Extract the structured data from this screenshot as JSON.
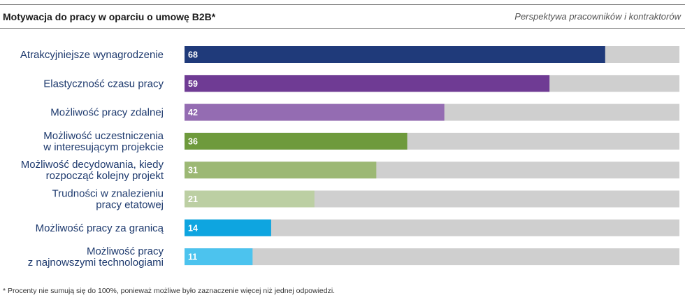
{
  "header": {
    "title": "Motywacja do pracy w oparciu o umowę B2B*",
    "subtitle": "Perspektywa pracowników i kontraktorów"
  },
  "footnote": "* Procenty nie sumują się do 100%, ponieważ możliwe było zaznaczenie więcej niż jednej odpowiedzi.",
  "chart_data": {
    "type": "bar",
    "orientation": "horizontal",
    "title": "Motywacja do pracy w oparciu o umowę B2B*",
    "subtitle": "Perspektywa pracowników i kontraktorów",
    "xlim": [
      0,
      80
    ],
    "grid": false,
    "legend": "none",
    "track_color": "#cfcfcf",
    "categories": [
      [
        "Atrakcyjniejsze wynagrodzenie"
      ],
      [
        "Elastyczność czasu pracy"
      ],
      [
        "Możliwość pracy zdalnej"
      ],
      [
        "Możliwość uczestniczenia",
        "w interesującym projekcie"
      ],
      [
        "Możliwość decydowania, kiedy",
        "rozpocząć kolejny projekt"
      ],
      [
        "Trudności w znalezieniu",
        "pracy etatowej"
      ],
      [
        "Możliwość pracy za granicą"
      ],
      [
        "Możliwość pracy",
        "z najnowszymi technologiami"
      ]
    ],
    "values": [
      68,
      59,
      42,
      36,
      31,
      21,
      14,
      11
    ],
    "colors": [
      "#1f3a7a",
      "#6f3b94",
      "#946cb2",
      "#6e9a3c",
      "#9cb874",
      "#bccfa3",
      "#0ea5e0",
      "#4cc3ee"
    ]
  }
}
